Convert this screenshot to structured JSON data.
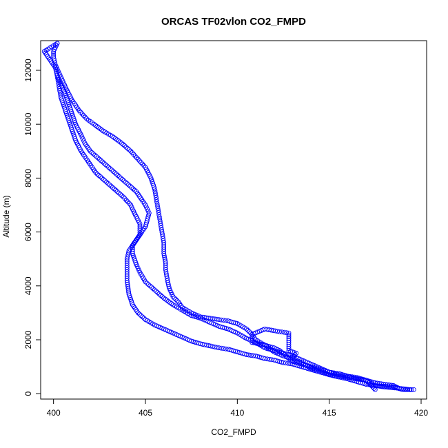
{
  "chart_data": {
    "type": "scatter",
    "title": "ORCAS TF02vlon CO2_FMPD",
    "xlabel": "CO2_FMPD",
    "ylabel": "Altitude (m)",
    "xlim": [
      399.3,
      420.3
    ],
    "ylim": [
      -200,
      13100
    ],
    "xticks": [
      400,
      405,
      410,
      415,
      420
    ],
    "yticks": [
      0,
      2000,
      4000,
      6000,
      8000,
      10000,
      12000
    ],
    "grid": false,
    "legend": "none",
    "marker": "open-circle",
    "color": "#0000ff",
    "segments": [
      [
        [
          419.6,
          150
        ],
        [
          419.0,
          150
        ],
        [
          418.5,
          250
        ],
        [
          417.5,
          300
        ],
        [
          417.0,
          500
        ],
        [
          416.5,
          600
        ],
        [
          416.0,
          650
        ],
        [
          415.5,
          750
        ],
        [
          415.0,
          800
        ],
        [
          414.5,
          950
        ],
        [
          414.0,
          1100
        ],
        [
          413.5,
          1250
        ],
        [
          413.0,
          1400
        ],
        [
          412.5,
          1500
        ],
        [
          412.0,
          1600
        ],
        [
          411.5,
          1700
        ],
        [
          411.0,
          1900
        ],
        [
          410.5,
          2050
        ],
        [
          410.0,
          2250
        ],
        [
          409.5,
          2400
        ],
        [
          409.0,
          2500
        ],
        [
          408.5,
          2650
        ],
        [
          408.0,
          2800
        ],
        [
          407.5,
          2900
        ],
        [
          407.0,
          3100
        ],
        [
          406.5,
          3300
        ],
        [
          406.0,
          3550
        ],
        [
          405.5,
          3850
        ],
        [
          405.0,
          4150
        ],
        [
          404.7,
          4500
        ],
        [
          404.5,
          4800
        ],
        [
          404.3,
          5200
        ],
        [
          404.3,
          5500
        ],
        [
          404.6,
          5800
        ],
        [
          405.0,
          6200
        ],
        [
          405.2,
          6700
        ],
        [
          405.0,
          7000
        ],
        [
          404.8,
          7200
        ],
        [
          404.5,
          7500
        ],
        [
          404.0,
          7800
        ],
        [
          403.5,
          8100
        ],
        [
          403.0,
          8400
        ],
        [
          402.5,
          8700
        ],
        [
          402.0,
          9000
        ],
        [
          401.7,
          9300
        ],
        [
          401.5,
          9600
        ],
        [
          401.2,
          10000
        ],
        [
          401.0,
          10400
        ],
        [
          400.8,
          10800
        ],
        [
          400.6,
          11200
        ],
        [
          400.4,
          11500
        ],
        [
          400.2,
          11800
        ]
      ],
      [
        [
          419.4,
          150
        ],
        [
          418.8,
          200
        ],
        [
          418.0,
          250
        ],
        [
          417.0,
          350
        ],
        [
          416.5,
          450
        ],
        [
          416.0,
          550
        ],
        [
          415.3,
          650
        ],
        [
          414.5,
          800
        ],
        [
          414.0,
          900
        ],
        [
          413.5,
          1000
        ],
        [
          413.0,
          1100
        ],
        [
          412.5,
          1150
        ],
        [
          412.0,
          1250
        ],
        [
          411.5,
          1300
        ],
        [
          411.0,
          1400
        ],
        [
          410.5,
          1450
        ],
        [
          410.0,
          1550
        ],
        [
          409.5,
          1650
        ],
        [
          409.0,
          1700
        ],
        [
          408.0,
          1850
        ],
        [
          407.5,
          1950
        ],
        [
          407.0,
          2100
        ],
        [
          406.5,
          2250
        ],
        [
          406.0,
          2400
        ],
        [
          405.5,
          2550
        ],
        [
          405.0,
          2750
        ],
        [
          404.6,
          3000
        ],
        [
          404.3,
          3300
        ],
        [
          404.1,
          3700
        ],
        [
          404.0,
          4200
        ],
        [
          404.0,
          4600
        ],
        [
          404.0,
          5000
        ],
        [
          404.1,
          5300
        ],
        [
          404.4,
          5600
        ],
        [
          404.7,
          5900
        ],
        [
          404.7,
          6300
        ],
        [
          404.4,
          6700
        ],
        [
          404.2,
          7000
        ],
        [
          403.8,
          7300
        ],
        [
          403.3,
          7600
        ],
        [
          402.8,
          7900
        ],
        [
          402.3,
          8200
        ],
        [
          401.9,
          8600
        ],
        [
          401.5,
          9000
        ],
        [
          401.2,
          9400
        ],
        [
          401.0,
          9800
        ],
        [
          400.8,
          10200
        ],
        [
          400.6,
          10600
        ],
        [
          400.4,
          11000
        ],
        [
          400.3,
          11400
        ],
        [
          400.2,
          11800
        ],
        [
          400.1,
          12100
        ],
        [
          399.8,
          12400
        ],
        [
          399.5,
          12700
        ],
        [
          400.2,
          13000
        ]
      ],
      [
        [
          418.8,
          200
        ],
        [
          418.5,
          300
        ],
        [
          417.5,
          400
        ],
        [
          417.0,
          500
        ],
        [
          416.0,
          600
        ],
        [
          415.5,
          650
        ],
        [
          415.0,
          700
        ],
        [
          414.5,
          850
        ],
        [
          414.0,
          950
        ],
        [
          413.5,
          1150
        ],
        [
          413.0,
          1300
        ],
        [
          412.5,
          1400
        ],
        [
          412.0,
          1550
        ],
        [
          411.5,
          1800
        ],
        [
          411.0,
          2000
        ],
        [
          410.8,
          2200
        ],
        [
          410.5,
          2400
        ],
        [
          410.0,
          2600
        ],
        [
          409.5,
          2700
        ],
        [
          409.0,
          2750
        ],
        [
          408.0,
          2850
        ],
        [
          407.5,
          3000
        ],
        [
          407.0,
          3200
        ],
        [
          406.8,
          3400
        ],
        [
          406.5,
          3600
        ],
        [
          406.3,
          3900
        ],
        [
          406.2,
          4200
        ],
        [
          406.1,
          4600
        ],
        [
          406.1,
          4850
        ],
        [
          406.0,
          5200
        ],
        [
          406.0,
          5600
        ],
        [
          405.9,
          6000
        ],
        [
          405.8,
          6400
        ],
        [
          405.7,
          6800
        ],
        [
          405.6,
          7200
        ],
        [
          405.5,
          7600
        ],
        [
          405.3,
          8000
        ],
        [
          405.0,
          8400
        ],
        [
          404.6,
          8700
        ],
        [
          404.2,
          9000
        ],
        [
          403.7,
          9300
        ],
        [
          403.2,
          9550
        ],
        [
          402.7,
          9750
        ],
        [
          402.2,
          10000
        ],
        [
          401.8,
          10200
        ],
        [
          401.4,
          10500
        ],
        [
          401.0,
          10900
        ],
        [
          400.7,
          11300
        ],
        [
          400.5,
          11600
        ],
        [
          400.3,
          11900
        ],
        [
          400.1,
          12200
        ],
        [
          400.0,
          12500
        ],
        [
          400.0,
          12700
        ],
        [
          400.2,
          13000
        ]
      ],
      [
        [
          417.5,
          150
        ],
        [
          417.3,
          300
        ],
        [
          417.0,
          500
        ],
        [
          416.5,
          550
        ],
        [
          416.0,
          650
        ],
        [
          415.5,
          700
        ],
        [
          415.0,
          800
        ],
        [
          414.5,
          900
        ],
        [
          414.0,
          1000
        ],
        [
          413.5,
          1100
        ],
        [
          413.0,
          1200
        ],
        [
          412.8,
          1300
        ],
        [
          412.5,
          1500
        ],
        [
          412.3,
          1600
        ],
        [
          412.0,
          1700
        ],
        [
          411.5,
          1800
        ],
        [
          410.8,
          1900
        ],
        [
          410.8,
          2200
        ],
        [
          411.5,
          2400
        ],
        [
          412.3,
          2300
        ],
        [
          412.8,
          2250
        ],
        [
          412.8,
          1900
        ],
        [
          412.8,
          1600
        ],
        [
          413.2,
          1500
        ],
        [
          413.0,
          1350
        ]
      ]
    ]
  }
}
